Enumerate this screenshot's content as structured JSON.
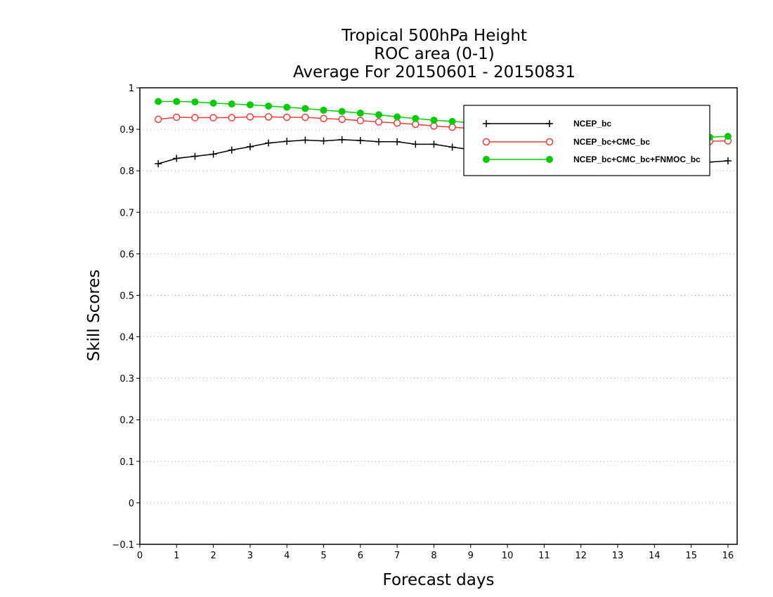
{
  "chart_data": {
    "type": "line",
    "title": [
      "Tropical 500hPa Height",
      "ROC area (0-1)",
      "Average For 20150601 - 20150831"
    ],
    "xlabel": "Forecast days",
    "ylabel": "Skill Scores",
    "xlim": [
      0,
      16.25
    ],
    "ylim": [
      -0.1,
      1
    ],
    "xticks": [
      "0",
      "1",
      "2",
      "3",
      "4",
      "5",
      "6",
      "7",
      "8",
      "9",
      "10",
      "11",
      "12",
      "13",
      "14",
      "15",
      "16"
    ],
    "yticks": [
      "−0.1",
      "0",
      "0.1",
      "0.2",
      "0.3",
      "0.4",
      "0.5",
      "0.6",
      "0.7",
      "0.8",
      "0.9",
      "1"
    ],
    "grid": "horizontal dotted",
    "legend_position": "top-right",
    "x": [
      0.5,
      1,
      1.5,
      2,
      2.5,
      3,
      3.5,
      4,
      4.5,
      5,
      5.5,
      6,
      6.5,
      7,
      7.5,
      8,
      8.5,
      9,
      9.5,
      10,
      10.5,
      11,
      11.5,
      12,
      12.5,
      13,
      13.5,
      14,
      14.5,
      15,
      15.5,
      16
    ],
    "series": [
      {
        "name": "NCEP_bc",
        "color": "#000000",
        "marker": "plus",
        "values": [
          0.817,
          0.83,
          0.835,
          0.84,
          0.85,
          0.858,
          0.867,
          0.871,
          0.874,
          0.872,
          0.875,
          0.873,
          0.87,
          0.87,
          0.864,
          0.864,
          0.857,
          0.851,
          0.848,
          0.845,
          0.842,
          0.84,
          0.838,
          0.835,
          0.833,
          0.831,
          0.829,
          0.827,
          0.825,
          0.823,
          0.821,
          0.824
        ]
      },
      {
        "name": "NCEP_bc+CMC_bc",
        "color": "#ee3b3b",
        "marker": "open-circle",
        "values": [
          0.924,
          0.929,
          0.928,
          0.928,
          0.928,
          0.93,
          0.93,
          0.929,
          0.929,
          0.926,
          0.924,
          0.921,
          0.918,
          0.915,
          0.912,
          0.908,
          0.905,
          0.902,
          0.9,
          0.898,
          0.896,
          0.894,
          0.892,
          0.89,
          0.888,
          0.886,
          0.884,
          0.882,
          0.879,
          0.876,
          0.871,
          0.872
        ]
      },
      {
        "name": "NCEP_bc+CMC_bc+FNMOC_bc",
        "color": "#00cc00",
        "marker": "filled-circle",
        "values": [
          0.967,
          0.967,
          0.966,
          0.963,
          0.961,
          0.959,
          0.956,
          0.953,
          0.95,
          0.946,
          0.943,
          0.939,
          0.935,
          0.93,
          0.926,
          0.922,
          0.919,
          0.916,
          0.913,
          0.91,
          0.908,
          0.906,
          0.904,
          0.902,
          0.899,
          0.897,
          0.894,
          0.891,
          0.888,
          0.885,
          0.881,
          0.883
        ]
      }
    ]
  }
}
